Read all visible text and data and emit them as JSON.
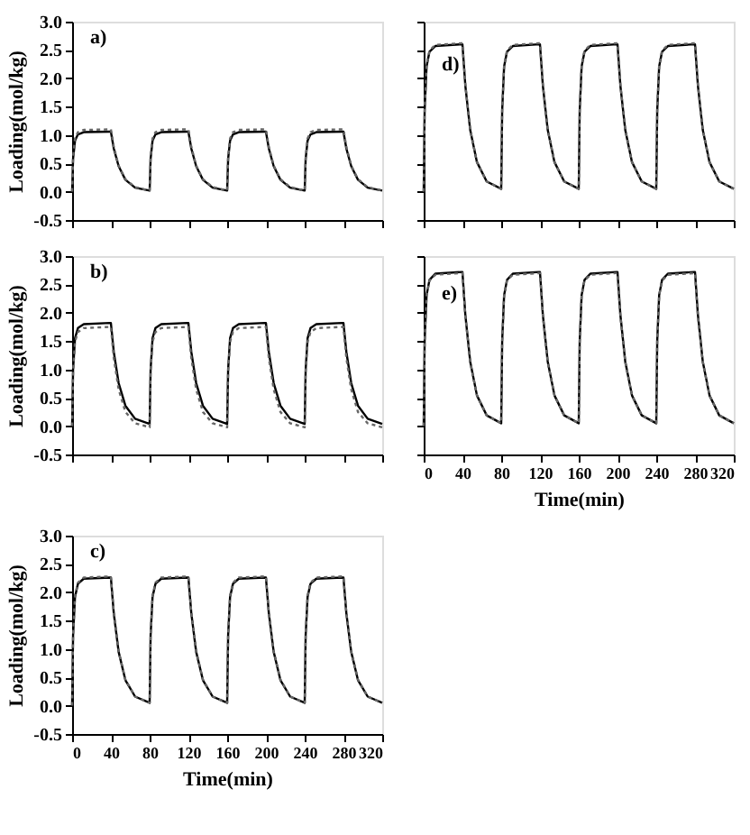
{
  "chart_data": [
    {
      "type": "line",
      "annotations": [
        "a)"
      ],
      "ylabel": "Loading(mol/kg)",
      "tick_labels": "y",
      "xlim": [
        0,
        320
      ],
      "xticks": [
        0,
        40,
        80,
        120,
        160,
        200,
        240,
        280,
        320
      ],
      "ylim": [
        -0.5,
        3.0
      ],
      "yticks": [
        {
          "value": -0.5,
          "label": "-0.5"
        },
        {
          "value": 0,
          "label": "0.0"
        },
        0.5,
        {
          "value": 1,
          "label": "1.0"
        },
        1.5,
        {
          "value": 2,
          "label": "2.0"
        },
        2.5,
        {
          "value": 3,
          "label": "3.0"
        }
      ],
      "grid": false,
      "x": [
        0,
        1,
        3,
        6,
        12,
        39,
        40,
        43,
        48,
        55,
        65,
        80,
        81,
        83,
        86,
        92,
        119,
        120,
        123,
        128,
        135,
        145,
        160,
        161,
        163,
        166,
        172,
        199,
        200,
        203,
        208,
        215,
        225,
        240,
        241,
        243,
        246,
        252,
        279,
        280,
        283,
        288,
        295,
        305,
        320
      ],
      "series": [
        {
          "color": "#000000",
          "line_style": "solid",
          "values": [
            0,
            0.58,
            0.9,
            1.01,
            1.05,
            1.06,
            1.06,
            0.76,
            0.45,
            0.21,
            0.07,
            0.02,
            0.58,
            0.9,
            1.01,
            1.05,
            1.06,
            1.06,
            0.76,
            0.45,
            0.21,
            0.07,
            0.02,
            0.58,
            0.9,
            1.01,
            1.05,
            1.06,
            1.06,
            0.76,
            0.45,
            0.21,
            0.07,
            0.02,
            0.58,
            0.9,
            1.01,
            1.05,
            1.06,
            1.06,
            0.76,
            0.45,
            0.21,
            0.07,
            0.02
          ]
        },
        {
          "color": "#666666",
          "line_style": "dotted",
          "values": [
            0,
            0.61,
            0.94,
            1.05,
            1.09,
            1.1,
            1.1,
            0.79,
            0.46,
            0.22,
            0.08,
            0.02,
            0.61,
            0.94,
            1.05,
            1.09,
            1.1,
            1.1,
            0.79,
            0.46,
            0.22,
            0.08,
            0.02,
            0.61,
            0.94,
            1.05,
            1.09,
            1.1,
            1.1,
            0.79,
            0.46,
            0.22,
            0.08,
            0.02,
            0.61,
            0.94,
            1.05,
            1.09,
            1.1,
            1.1,
            0.79,
            0.46,
            0.22,
            0.08,
            0.02
          ]
        }
      ]
    },
    {
      "type": "line",
      "annotations": [
        "b)"
      ],
      "ylabel": "Loading(mol/kg)",
      "tick_labels": "y",
      "xlim": [
        0,
        320
      ],
      "xticks": [
        0,
        40,
        80,
        120,
        160,
        200,
        240,
        280,
        320
      ],
      "ylim": [
        -0.5,
        3.0
      ],
      "yticks": [
        {
          "value": -0.5,
          "label": "-0.5"
        },
        {
          "value": 0,
          "label": "0.0"
        },
        0.5,
        {
          "value": 1,
          "label": "1.0"
        },
        1.5,
        {
          "value": 2,
          "label": "2.0"
        },
        2.5,
        {
          "value": 3,
          "label": "3.0"
        }
      ],
      "grid": false,
      "x": [
        0,
        1,
        3,
        6,
        12,
        39,
        40,
        43,
        48,
        55,
        65,
        80,
        81,
        83,
        86,
        92,
        119,
        120,
        123,
        128,
        135,
        145,
        160,
        161,
        163,
        166,
        172,
        199,
        200,
        203,
        208,
        215,
        225,
        240,
        241,
        243,
        246,
        252,
        279,
        280,
        283,
        288,
        295,
        305,
        320
      ],
      "series": [
        {
          "color": "#000000",
          "line_style": "solid",
          "values": [
            0,
            1.0,
            1.55,
            1.73,
            1.8,
            1.82,
            1.82,
            1.31,
            0.76,
            0.36,
            0.13,
            0.04,
            1.0,
            1.55,
            1.73,
            1.8,
            1.82,
            1.82,
            1.31,
            0.76,
            0.36,
            0.13,
            0.04,
            1.0,
            1.55,
            1.73,
            1.8,
            1.82,
            1.82,
            1.31,
            0.76,
            0.36,
            0.13,
            0.04,
            1.0,
            1.55,
            1.73,
            1.8,
            1.82,
            1.82,
            1.31,
            0.76,
            0.36,
            0.13,
            0.04
          ]
        },
        {
          "color": "#666666",
          "line_style": "dotted",
          "values": [
            0,
            0.96,
            1.49,
            1.66,
            1.73,
            1.75,
            1.75,
            1.2,
            0.65,
            0.25,
            0.05,
            -0.02,
            0.96,
            1.49,
            1.66,
            1.73,
            1.75,
            1.75,
            1.2,
            0.65,
            0.25,
            0.05,
            -0.02,
            0.96,
            1.49,
            1.66,
            1.73,
            1.75,
            1.75,
            1.2,
            0.65,
            0.25,
            0.05,
            -0.02,
            0.96,
            1.49,
            1.66,
            1.73,
            1.75,
            1.75,
            1.2,
            0.65,
            0.25,
            0.05,
            -0.02
          ]
        }
      ]
    },
    {
      "type": "line",
      "annotations": [
        "c)"
      ],
      "ylabel": "Loading(mol/kg)",
      "xlabel": "Time(min)",
      "xlim": [
        0,
        320
      ],
      "xticks": [
        0,
        40,
        80,
        120,
        160,
        200,
        240,
        280,
        320
      ],
      "ylim": [
        -0.5,
        3.0
      ],
      "yticks": [
        {
          "value": -0.5,
          "label": "-0.5"
        },
        {
          "value": 0,
          "label": "0.0"
        },
        0.5,
        {
          "value": 1,
          "label": "1.0"
        },
        1.5,
        {
          "value": 2,
          "label": "2.0"
        },
        2.5,
        {
          "value": 3,
          "label": "3.0"
        }
      ],
      "grid": false,
      "x": [
        0,
        1,
        3,
        6,
        12,
        39,
        40,
        43,
        48,
        55,
        65,
        80,
        81,
        83,
        86,
        92,
        119,
        120,
        123,
        128,
        135,
        145,
        160,
        161,
        163,
        166,
        172,
        199,
        200,
        203,
        208,
        215,
        225,
        240,
        241,
        243,
        246,
        252,
        279,
        280,
        283,
        288,
        295,
        305,
        320
      ],
      "series": [
        {
          "color": "#000000",
          "line_style": "solid",
          "values": [
            0,
            1.24,
            1.92,
            2.15,
            2.24,
            2.26,
            2.26,
            1.63,
            0.95,
            0.45,
            0.16,
            0.05,
            1.24,
            1.92,
            2.15,
            2.24,
            2.26,
            2.26,
            1.63,
            0.95,
            0.45,
            0.16,
            0.05,
            1.24,
            1.92,
            2.15,
            2.24,
            2.26,
            2.26,
            1.63,
            0.95,
            0.45,
            0.16,
            0.05,
            1.24,
            1.92,
            2.15,
            2.24,
            2.26,
            2.26,
            1.63,
            0.95,
            0.45,
            0.16,
            0.05
          ]
        },
        {
          "color": "#666666",
          "line_style": "dotted",
          "values": [
            0,
            1.25,
            1.94,
            2.17,
            2.26,
            2.28,
            2.28,
            1.64,
            0.96,
            0.46,
            0.16,
            0.05,
            1.25,
            1.94,
            2.17,
            2.26,
            2.28,
            2.28,
            1.64,
            0.96,
            0.46,
            0.16,
            0.05,
            1.25,
            1.94,
            2.17,
            2.26,
            2.28,
            2.28,
            1.64,
            0.96,
            0.46,
            0.16,
            0.05,
            1.25,
            1.94,
            2.17,
            2.26,
            2.28,
            2.28,
            1.64,
            0.96,
            0.46,
            0.16,
            0.05
          ]
        }
      ]
    },
    {
      "type": "line",
      "annotations": [
        "d)"
      ],
      "tick_labels": false,
      "xlim": [
        0,
        320
      ],
      "xticks": [
        0,
        40,
        80,
        120,
        160,
        200,
        240,
        280,
        320
      ],
      "ylim": [
        -0.5,
        3.0
      ],
      "yticks": [
        -0.5,
        0.0,
        0.5,
        1.0,
        1.5,
        2.0,
        2.5,
        3.0
      ],
      "grid": false,
      "x": [
        0,
        1,
        3,
        6,
        12,
        39,
        40,
        43,
        48,
        55,
        65,
        80,
        81,
        83,
        86,
        92,
        119,
        120,
        123,
        128,
        135,
        145,
        160,
        161,
        163,
        166,
        172,
        199,
        200,
        203,
        208,
        215,
        225,
        240,
        241,
        243,
        246,
        252,
        279,
        280,
        283,
        288,
        295,
        305,
        320
      ],
      "series": [
        {
          "color": "#000000",
          "line_style": "solid",
          "values": [
            0,
            1.43,
            2.21,
            2.47,
            2.57,
            2.6,
            2.6,
            1.87,
            1.09,
            0.52,
            0.18,
            0.05,
            1.43,
            2.21,
            2.47,
            2.57,
            2.6,
            2.6,
            1.87,
            1.09,
            0.52,
            0.18,
            0.05,
            1.43,
            2.21,
            2.47,
            2.57,
            2.6,
            2.6,
            1.87,
            1.09,
            0.52,
            0.18,
            0.05,
            1.43,
            2.21,
            2.47,
            2.57,
            2.6,
            2.6,
            1.87,
            1.09,
            0.52,
            0.18,
            0.05
          ]
        },
        {
          "color": "#666666",
          "line_style": "dotted",
          "values": [
            0,
            1.44,
            2.23,
            2.49,
            2.59,
            2.62,
            2.62,
            1.89,
            1.1,
            0.52,
            0.18,
            0.05,
            1.44,
            2.23,
            2.49,
            2.59,
            2.62,
            2.62,
            1.89,
            1.1,
            0.52,
            0.18,
            0.05,
            1.44,
            2.23,
            2.49,
            2.59,
            2.62,
            2.62,
            1.89,
            1.1,
            0.52,
            0.18,
            0.05,
            1.44,
            2.23,
            2.49,
            2.59,
            2.62,
            2.62,
            1.89,
            1.1,
            0.52,
            0.18,
            0.05
          ]
        }
      ]
    },
    {
      "type": "line",
      "annotations": [
        "e)"
      ],
      "xlabel": "Time(min)",
      "tick_labels": "x",
      "xlim": [
        0,
        320
      ],
      "xticks": [
        0,
        40,
        80,
        120,
        160,
        200,
        240,
        280,
        320
      ],
      "ylim": [
        -0.5,
        3.0
      ],
      "yticks": [
        -0.5,
        0.0,
        0.5,
        1.0,
        1.5,
        2.0,
        2.5,
        3.0
      ],
      "grid": false,
      "x": [
        0,
        1,
        3,
        6,
        12,
        39,
        40,
        43,
        48,
        55,
        65,
        80,
        81,
        83,
        86,
        92,
        119,
        120,
        123,
        128,
        135,
        145,
        160,
        161,
        163,
        166,
        172,
        199,
        200,
        203,
        208,
        215,
        225,
        240,
        241,
        243,
        246,
        252,
        279,
        280,
        283,
        288,
        295,
        305,
        320
      ],
      "series": [
        {
          "color": "#000000",
          "line_style": "solid",
          "values": [
            0,
            1.5,
            2.31,
            2.58,
            2.69,
            2.72,
            2.72,
            1.96,
            1.14,
            0.54,
            0.19,
            0.05,
            1.5,
            2.31,
            2.58,
            2.69,
            2.72,
            2.72,
            1.96,
            1.14,
            0.54,
            0.19,
            0.05,
            1.5,
            2.31,
            2.58,
            2.69,
            2.72,
            2.72,
            1.96,
            1.14,
            0.54,
            0.19,
            0.05,
            1.5,
            2.31,
            2.58,
            2.69,
            2.72,
            2.72,
            1.96,
            1.14,
            0.54,
            0.19,
            0.05
          ]
        },
        {
          "color": "#666666",
          "line_style": "dotted",
          "values": [
            0,
            1.49,
            2.3,
            2.57,
            2.67,
            2.7,
            2.7,
            1.94,
            1.13,
            0.54,
            0.19,
            0.05,
            1.49,
            2.3,
            2.57,
            2.67,
            2.7,
            2.7,
            1.94,
            1.13,
            0.54,
            0.19,
            0.05,
            1.49,
            2.3,
            2.57,
            2.67,
            2.7,
            2.7,
            1.94,
            1.13,
            0.54,
            0.19,
            0.05,
            1.49,
            2.3,
            2.57,
            2.67,
            2.7,
            2.7,
            1.94,
            1.13,
            0.54,
            0.19,
            0.05
          ]
        }
      ]
    }
  ]
}
